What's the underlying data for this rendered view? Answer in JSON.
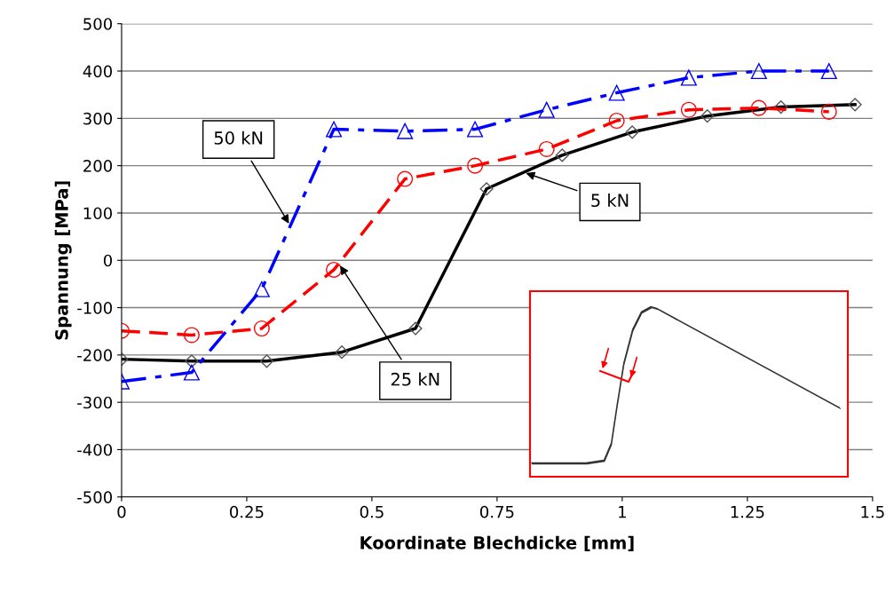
{
  "chart_data": {
    "type": "line",
    "xlabel": "Koordinate Blechdicke [mm]",
    "ylabel": "Spannung [MPa]",
    "xlim": [
      0,
      1.5
    ],
    "xticks": [
      0,
      0.25,
      0.5,
      0.75,
      1,
      1.25,
      1.5
    ],
    "ylim": [
      -500,
      500
    ],
    "yticks": [
      -500,
      -400,
      -300,
      -200,
      -100,
      0,
      100,
      200,
      300,
      400,
      500
    ],
    "grid": "y",
    "series": [
      {
        "color": "#000000",
        "marker": "diamond",
        "line_style": "solid",
        "x": [
          0,
          0.14,
          0.29,
          0.44,
          0.587,
          0.729,
          0.88,
          1.02,
          1.17,
          1.317,
          1.465
        ],
        "values": [
          -209,
          -213,
          -213,
          -194,
          -144,
          151,
          222,
          271,
          305,
          324,
          329
        ]
      },
      {
        "color": "#ff0000",
        "marker": "circle",
        "line_style": "dashed",
        "x": [
          0,
          0.14,
          0.28,
          0.424,
          0.566,
          0.706,
          0.849,
          0.989,
          1.133,
          1.273,
          1.413
        ],
        "values": [
          -149,
          -158,
          -144,
          -20,
          172,
          200,
          235,
          295,
          318,
          322,
          314
        ]
      },
      {
        "color": "#0000ff",
        "marker": "triangle",
        "line_style": "dashdot",
        "x": [
          0,
          0.14,
          0.28,
          0.424,
          0.566,
          0.706,
          0.849,
          0.989,
          1.133,
          1.273,
          1.413
        ],
        "values": [
          -256,
          -237,
          -61,
          277,
          273,
          277,
          318,
          354,
          386,
          400,
          400
        ]
      }
    ],
    "annotations": [
      {
        "text": "50 kN",
        "x": 0.337,
        "y": 73
      },
      {
        "text": "5 kN",
        "x": 0.803,
        "y": 186
      },
      {
        "text": "25 kN",
        "x": 0.434,
        "y": -7
      }
    ]
  }
}
